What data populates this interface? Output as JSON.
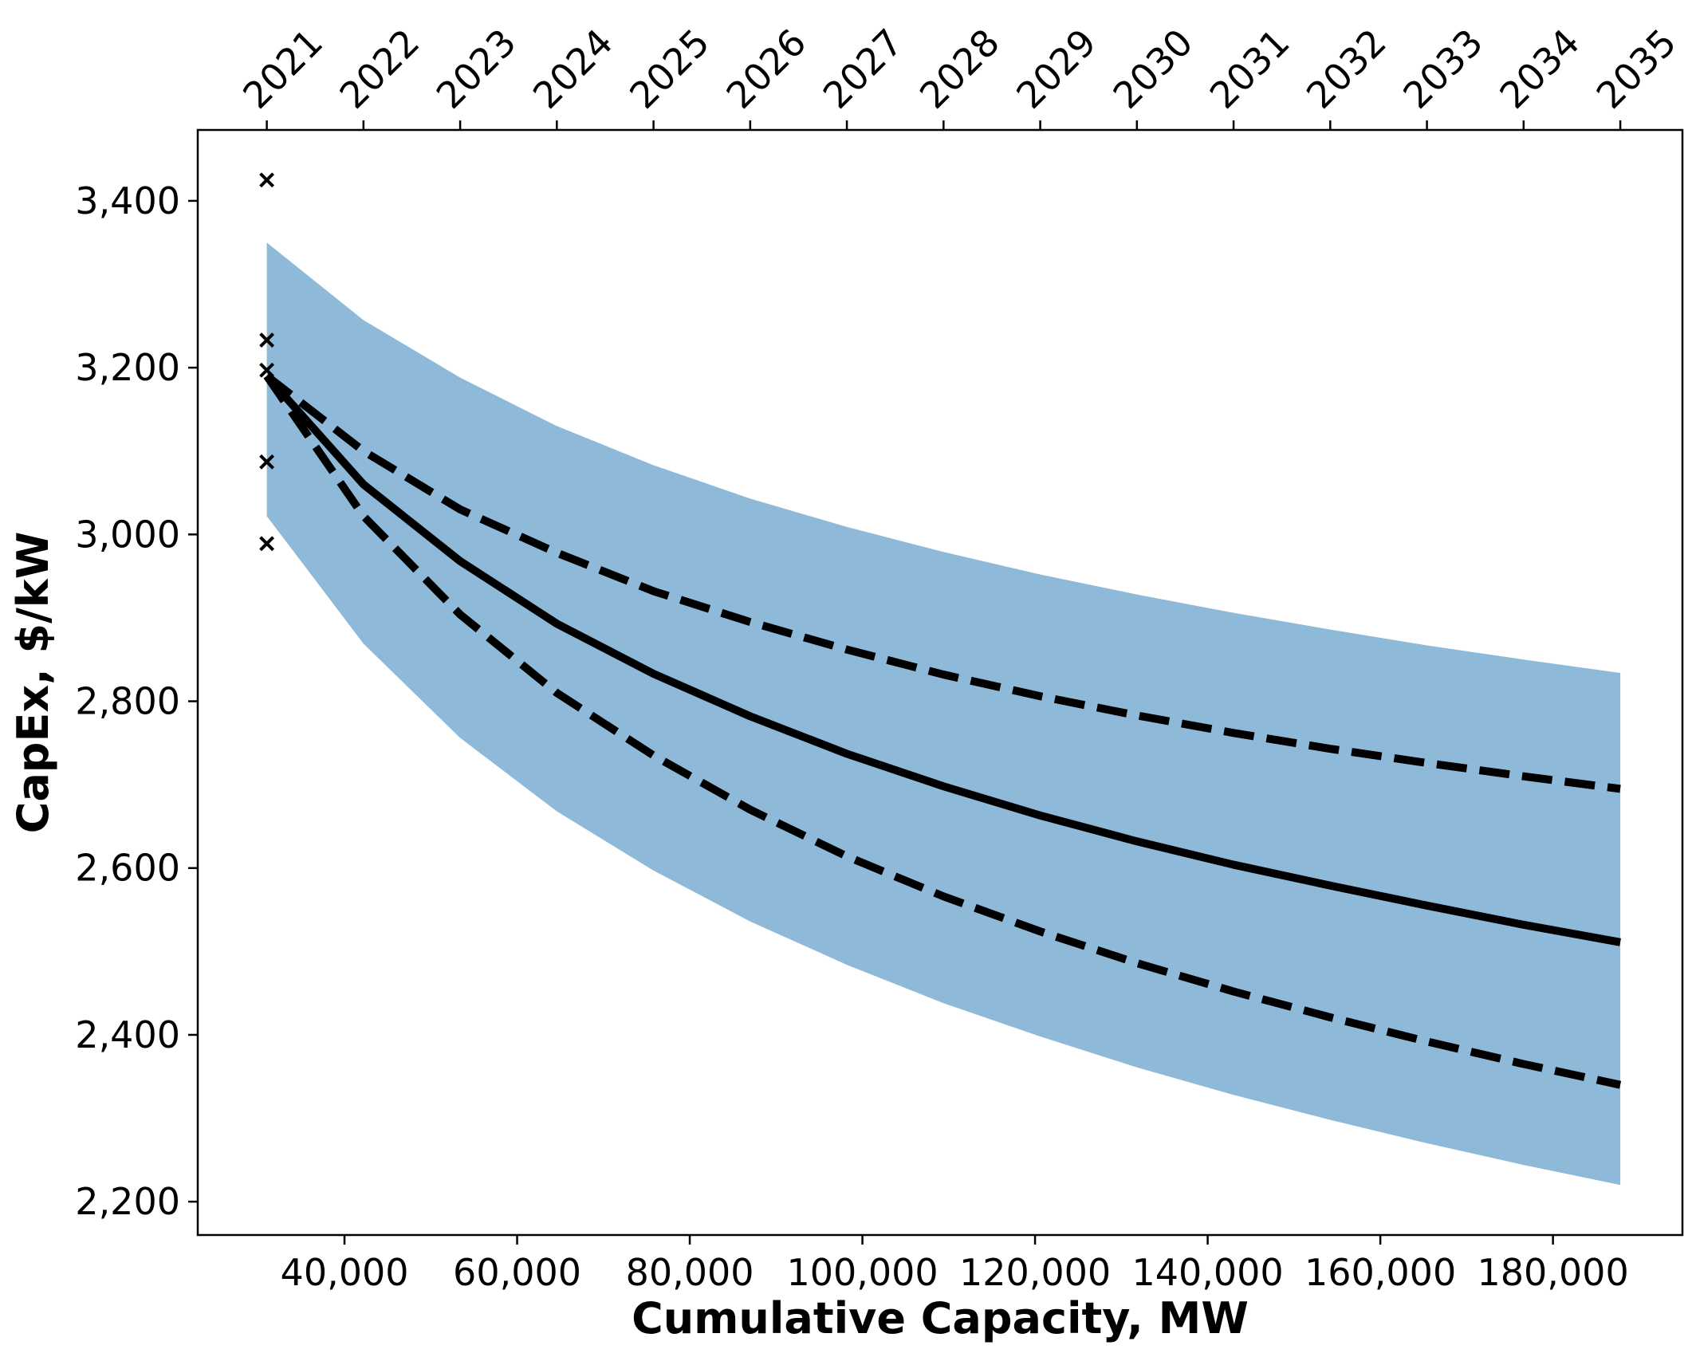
{
  "chart_data": {
    "type": "line",
    "title": "",
    "xlabel": "Cumulative Capacity, MW",
    "ylabel": "CapEx, $/kW",
    "xlim": [
      23000,
      195000
    ],
    "ylim": [
      2160,
      3485
    ],
    "grid": false,
    "legend": "none",
    "x_ticks": [
      40000,
      60000,
      80000,
      100000,
      120000,
      140000,
      160000,
      180000
    ],
    "x_tick_labels": [
      "40,000",
      "60,000",
      "80,000",
      "100,000",
      "120,000",
      "140,000",
      "160,000",
      "180,000"
    ],
    "y_ticks": [
      2200,
      2400,
      2600,
      2800,
      3000,
      3200,
      3400
    ],
    "y_tick_labels": [
      "2,200",
      "2,400",
      "2,600",
      "2,800",
      "3,000",
      "3,200",
      "3,400"
    ],
    "top_axis": {
      "labels": [
        "2021",
        "2022",
        "2023",
        "2024",
        "2025",
        "2026",
        "2027",
        "2028",
        "2029",
        "2030",
        "2031",
        "2032",
        "2033",
        "2034",
        "2035"
      ],
      "positions": [
        31000,
        42200,
        53400,
        64600,
        75800,
        87000,
        98200,
        109400,
        120600,
        131800,
        143000,
        154200,
        165400,
        176600,
        187800
      ]
    },
    "x": [
      31000,
      42200,
      53400,
      64600,
      75800,
      87000,
      98200,
      109400,
      120600,
      131800,
      143000,
      154200,
      165400,
      176600,
      187800
    ],
    "band": {
      "upper": [
        3350,
        3257,
        3188,
        3130,
        3083,
        3043,
        3009,
        2979,
        2952,
        2928,
        2906,
        2886,
        2867,
        2850,
        2834
      ],
      "lower": [
        3022,
        2869,
        2756,
        2668,
        2597,
        2536,
        2484,
        2438,
        2398,
        2361,
        2328,
        2298,
        2270,
        2244,
        2220
      ],
      "color": "#8fb9d9"
    },
    "series": [
      {
        "values": [
          3190,
          3060,
          2968,
          2893,
          2833,
          2782,
          2737,
          2698,
          2663,
          2632,
          2604,
          2579,
          2555,
          2532,
          2511
        ],
        "style": "solid"
      },
      {
        "values": [
          3190,
          3100,
          3030,
          2978,
          2932,
          2895,
          2862,
          2832,
          2806,
          2783,
          2762,
          2743,
          2726,
          2710,
          2695
        ],
        "style": "dashed"
      },
      {
        "values": [
          3190,
          3022,
          2904,
          2810,
          2735,
          2670,
          2614,
          2566,
          2524,
          2486,
          2452,
          2421,
          2392,
          2365,
          2340
        ],
        "style": "dashed"
      }
    ],
    "markers": {
      "symbol": "x",
      "points": [
        {
          "x": 31000,
          "y": 3425
        },
        {
          "x": 31000,
          "y": 3233
        },
        {
          "x": 31000,
          "y": 3197
        },
        {
          "x": 31000,
          "y": 3087
        },
        {
          "x": 31000,
          "y": 2989
        }
      ]
    }
  }
}
